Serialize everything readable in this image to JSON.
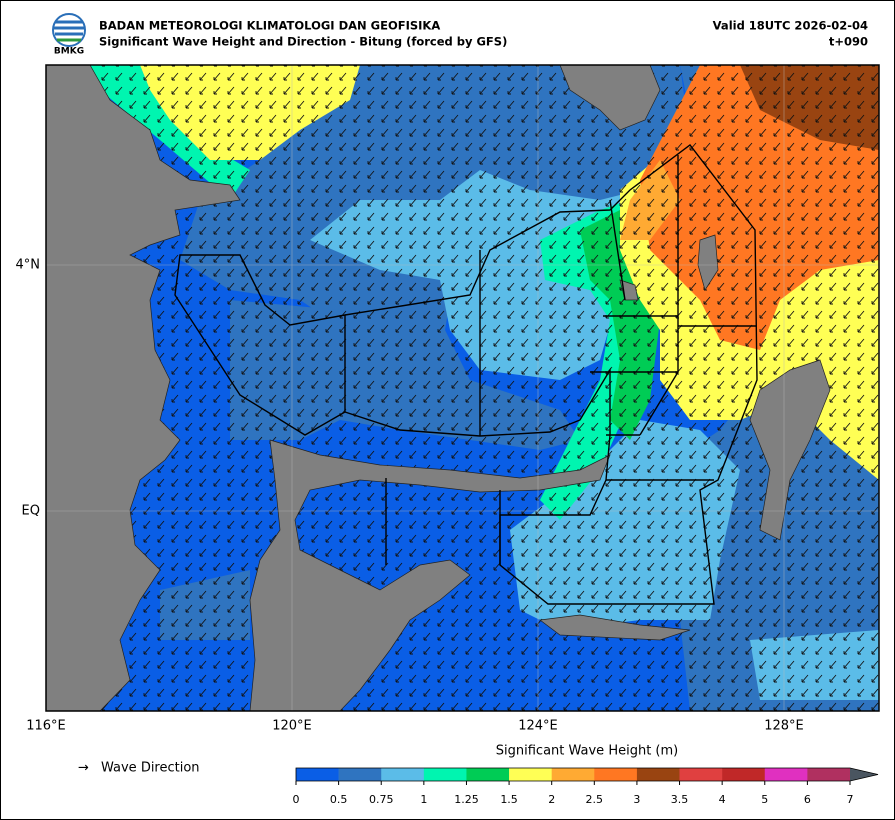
{
  "header": {
    "logo_text": "BMKG",
    "title": "BADAN METEOROLOGI KLIMATOLOGI DAN GEOFISIKA",
    "subtitle": "Significant Wave Height and Direction - Bitung (forced by GFS)",
    "valid": "Valid 18UTC 2026-02-04",
    "lead": "t+090"
  },
  "map": {
    "x_labels": [
      "116°E",
      "120°E",
      "124°E",
      "128°E"
    ],
    "y_labels": [
      "4°N",
      "EQ"
    ]
  },
  "legend": {
    "arrow": "→",
    "label": "Wave Direction"
  },
  "colorbar": {
    "title": "Significant Wave Height (m)",
    "ticks": [
      "0",
      "0.5",
      "0.75",
      "1",
      "1.25",
      "1.5",
      "2",
      "2.5",
      "3",
      "3.5",
      "4",
      "5",
      "6",
      "7"
    ],
    "colors": [
      "#0a5ee6",
      "#2f74c0",
      "#5bbce8",
      "#00f5b0",
      "#00cc55",
      "#ffff55",
      "#ffaa33",
      "#ff7722",
      "#994411",
      "#e04040",
      "#c02828",
      "#e030c0",
      "#b03060"
    ],
    "extend_color": "#4a5560"
  }
}
